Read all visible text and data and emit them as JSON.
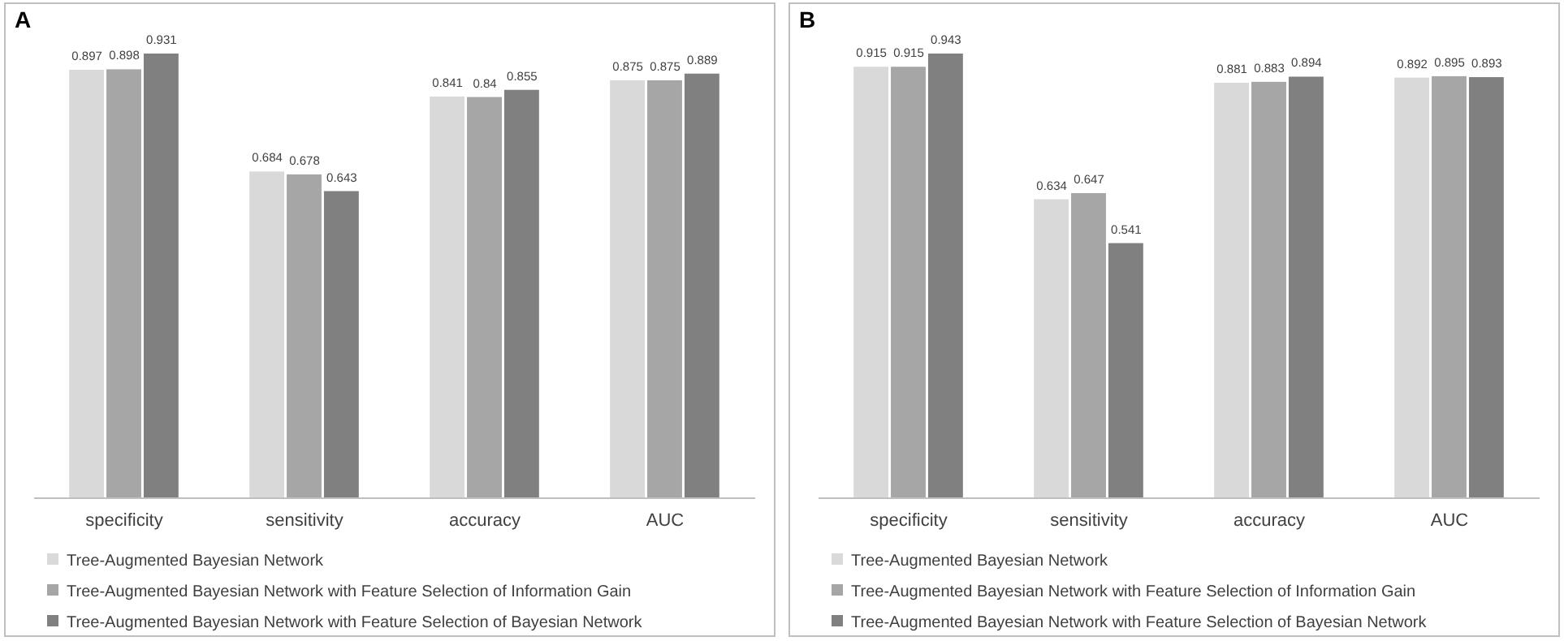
{
  "chart_data": [
    {
      "type": "bar",
      "title": "A",
      "categories": [
        "specificity",
        "sensitivity",
        "accuracy",
        "AUC"
      ],
      "tick_labels": "x",
      "grid": false,
      "legend": "bottom",
      "data_labels": true,
      "series": [
        {
          "name": "Tree-Augmented Bayesian Network",
          "color": "#d9d9d9",
          "values": [
            0.897,
            0.684,
            0.841,
            0.875
          ]
        },
        {
          "name": "Tree-Augmented Bayesian Network with Feature Selection of Information Gain",
          "color": "#a6a6a6",
          "values": [
            0.898,
            0.678,
            0.84,
            0.875
          ]
        },
        {
          "name": "Tree-Augmented Bayesian Network with Feature Selection of Bayesian Network",
          "color": "#808080",
          "values": [
            0.931,
            0.643,
            0.855,
            0.889
          ]
        }
      ]
    },
    {
      "type": "bar",
      "title": "B",
      "categories": [
        "specificity",
        "sensitivity",
        "accuracy",
        "AUC"
      ],
      "tick_labels": "x",
      "grid": false,
      "legend": "bottom",
      "data_labels": true,
      "series": [
        {
          "name": "Tree-Augmented Bayesian Network",
          "color": "#d9d9d9",
          "values": [
            0.915,
            0.634,
            0.881,
            0.892
          ]
        },
        {
          "name": "Tree-Augmented Bayesian Network with Feature Selection of Information Gain",
          "color": "#a6a6a6",
          "values": [
            0.915,
            0.647,
            0.883,
            0.895
          ]
        },
        {
          "name": "Tree-Augmented Bayesian Network with Feature Selection of Bayesian Network",
          "color": "#808080",
          "values": [
            0.943,
            0.541,
            0.894,
            0.893
          ]
        }
      ]
    }
  ]
}
